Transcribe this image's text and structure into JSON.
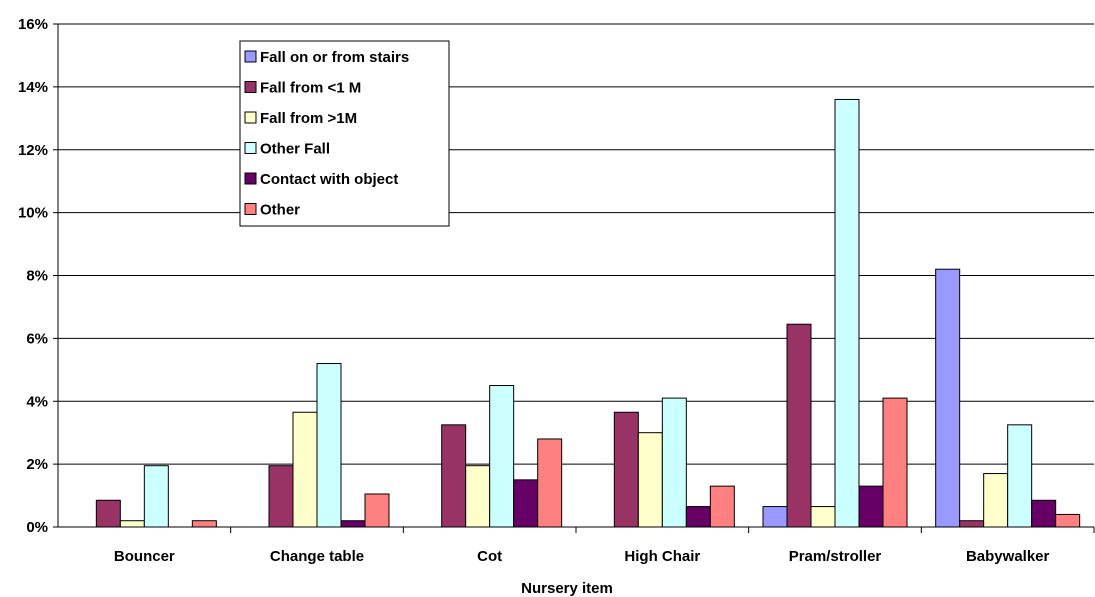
{
  "chart_data": {
    "type": "bar",
    "title": "",
    "xlabel": "Nursery item",
    "ylabel": "",
    "ylim": [
      0,
      16
    ],
    "y_ticks": [
      0,
      2,
      4,
      6,
      8,
      10,
      12,
      14,
      16
    ],
    "y_tick_labels": [
      "0%",
      "2%",
      "4%",
      "6%",
      "8%",
      "10%",
      "12%",
      "14%",
      "16%"
    ],
    "grid": true,
    "legend_position": "top-left inside plot",
    "categories": [
      "Bouncer",
      "Change table",
      "Cot",
      "High Chair",
      "Pram/stroller",
      "Babywalker"
    ],
    "series": [
      {
        "name": "Fall on or from stairs",
        "color": "#9999ff",
        "values": [
          0,
          0,
          0,
          0,
          0.65,
          8.2
        ]
      },
      {
        "name": "Fall from <1 M",
        "color": "#993366",
        "values": [
          0.85,
          1.95,
          3.25,
          3.65,
          6.45,
          0.2
        ]
      },
      {
        "name": "Fall from >1M",
        "color": "#ffffcc",
        "values": [
          0.2,
          3.65,
          1.95,
          3.0,
          0.65,
          1.7
        ]
      },
      {
        "name": "Other Fall",
        "color": "#ccffff",
        "values": [
          1.95,
          5.2,
          4.5,
          4.1,
          13.6,
          3.25
        ]
      },
      {
        "name": "Contact with object",
        "color": "#660066",
        "values": [
          0,
          0.2,
          1.5,
          0.65,
          1.3,
          0.85
        ]
      },
      {
        "name": "Other",
        "color": "#ff8080",
        "values": [
          0.2,
          1.05,
          2.8,
          1.3,
          4.1,
          0.4
        ]
      }
    ]
  }
}
